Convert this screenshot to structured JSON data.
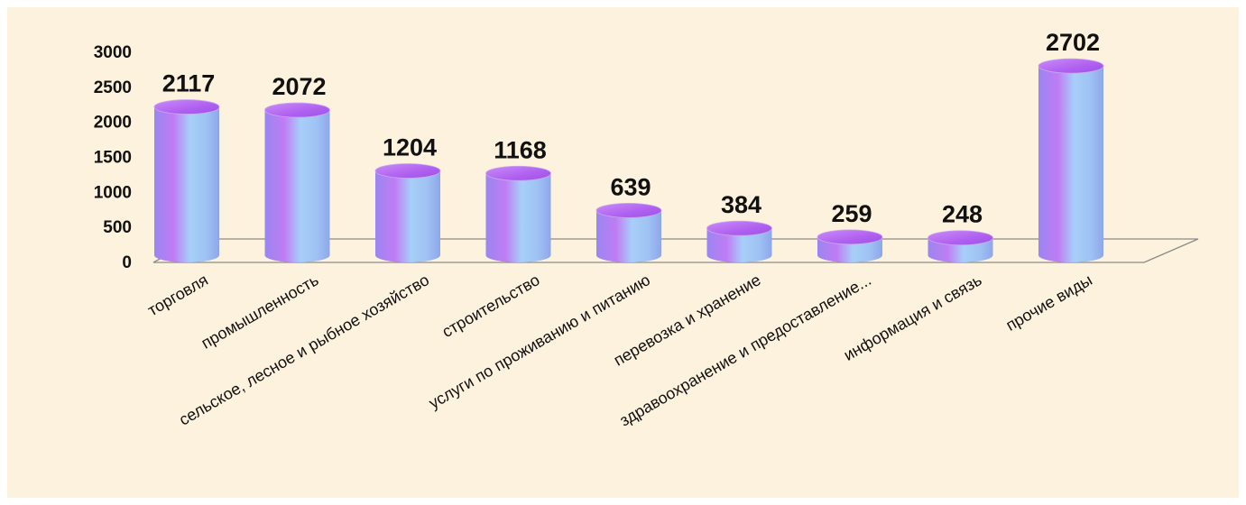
{
  "chart_data": {
    "type": "bar",
    "style": "3d-cylinder",
    "title": "",
    "xlabel": "",
    "ylabel": "",
    "ylim": [
      0,
      3000
    ],
    "yticks": [
      0,
      500,
      1000,
      1500,
      2000,
      2500,
      3000
    ],
    "grid": false,
    "legend": "none",
    "colors": {
      "bar_edge": "#9a86f0",
      "bar_mid": "#a5d0f8",
      "bar_top": "#b25cf0",
      "background": "#fdf2dd"
    },
    "categories": [
      "торговля",
      "промышленность",
      "сельское, лесное и рыбное хозяйство",
      "строительство",
      "услуги по проживанию и питанию",
      "перевозка и хранение",
      "здравоохранение и предоставление...",
      "информация и связь",
      "прочие виды"
    ],
    "values": [
      2117,
      2072,
      1204,
      1168,
      639,
      384,
      259,
      248,
      2702
    ],
    "data_labels": [
      "2117",
      "2072",
      "1204",
      "1168",
      "639",
      "384",
      "259",
      "248",
      "2702"
    ]
  }
}
